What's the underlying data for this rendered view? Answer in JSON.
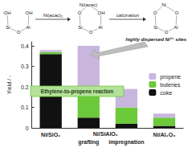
{
  "chart_data": {
    "type": "bar",
    "stacked": true,
    "categories": [
      "Ni/SiO₂",
      "grafting",
      "impregnation",
      "Ni/Al₂O₃"
    ],
    "group_label": "Ni/SiAlOₓ",
    "annotation": "Ethylene-to-propene reaction",
    "ylabel": "Yield / -",
    "ylim": [
      0,
      0.42
    ],
    "yticks": [
      0,
      0.1,
      0.2,
      0.3,
      0.4
    ],
    "grid": false,
    "legend": "right",
    "series": [
      {
        "name": "coke",
        "color": "#111111",
        "values": [
          0.36,
          0.05,
          0.02,
          0.01
        ]
      },
      {
        "name": "butenes",
        "color": "#6cc93a",
        "values": [
          0.01,
          0.13,
          0.08,
          0.04
        ]
      },
      {
        "name": "propene",
        "color": "#c9b6df",
        "values": [
          0.01,
          0.22,
          0.09,
          0.02
        ]
      }
    ]
  },
  "diagram": {
    "structures": [
      {
        "atoms": [
          "OH",
          "OH",
          "Si",
          "O",
          "Al"
        ]
      },
      {
        "atoms": [
          "O",
          "OH",
          "Si",
          "O",
          "Al",
          "Ni(acac)"
        ]
      },
      {
        "atoms": [
          "O",
          "O",
          "Si",
          "O",
          "Al",
          "Ni"
        ]
      }
    ],
    "steps": [
      "Ni(acac)₂",
      "calcination"
    ],
    "note": "highly dispersed Ni²⁺ sites"
  }
}
